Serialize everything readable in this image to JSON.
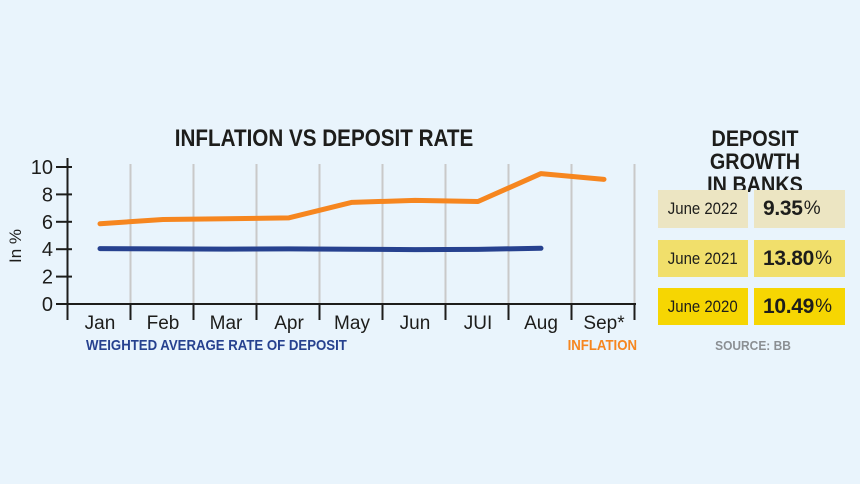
{
  "colors": {
    "background": "#e9f4fc",
    "axis": "#1d1d1b",
    "grid": "#c9c9c9",
    "deposit_line": "#26418f",
    "inflation_line": "#f6861f",
    "source_text": "#8b8f93"
  },
  "chart_data": {
    "type": "line",
    "title": "INFLATION VS DEPOSIT RATE",
    "xlabel": "",
    "ylabel": "In %",
    "categories": [
      "Jan",
      "Feb",
      "Mar",
      "Apr",
      "May",
      "Jun",
      "JUI",
      "Aug",
      "Sep*"
    ],
    "series": [
      {
        "name": "WEIGHTED AVERAGE RATE OF DEPOSIT",
        "color": "#26418f",
        "values": [
          4.04,
          4.02,
          4.01,
          4.02,
          4.0,
          3.97,
          3.99,
          4.07,
          null
        ]
      },
      {
        "name": "INFLATION",
        "color": "#f6861f",
        "values": [
          5.86,
          6.17,
          6.22,
          6.29,
          7.42,
          7.56,
          7.48,
          9.52,
          9.1
        ]
      }
    ],
    "ylim": [
      0,
      10
    ],
    "yticks": [
      0,
      2,
      4,
      6,
      8,
      10
    ],
    "grid": "vertical-only",
    "legend_position": "bottom"
  },
  "panel": {
    "title_line1": "DEPOSIT GROWTH",
    "title_line2": "IN BANKS",
    "rows": [
      {
        "label": "June 2022",
        "value": "9.35",
        "unit": "%",
        "bg": "#ece5c2"
      },
      {
        "label": "June 2021",
        "value": "13.80",
        "unit": "%",
        "bg": "#f1df6b"
      },
      {
        "label": "June 2020",
        "value": "10.49",
        "unit": "%",
        "bg": "#f6d602"
      }
    ],
    "source": "SOURCE: BB"
  }
}
